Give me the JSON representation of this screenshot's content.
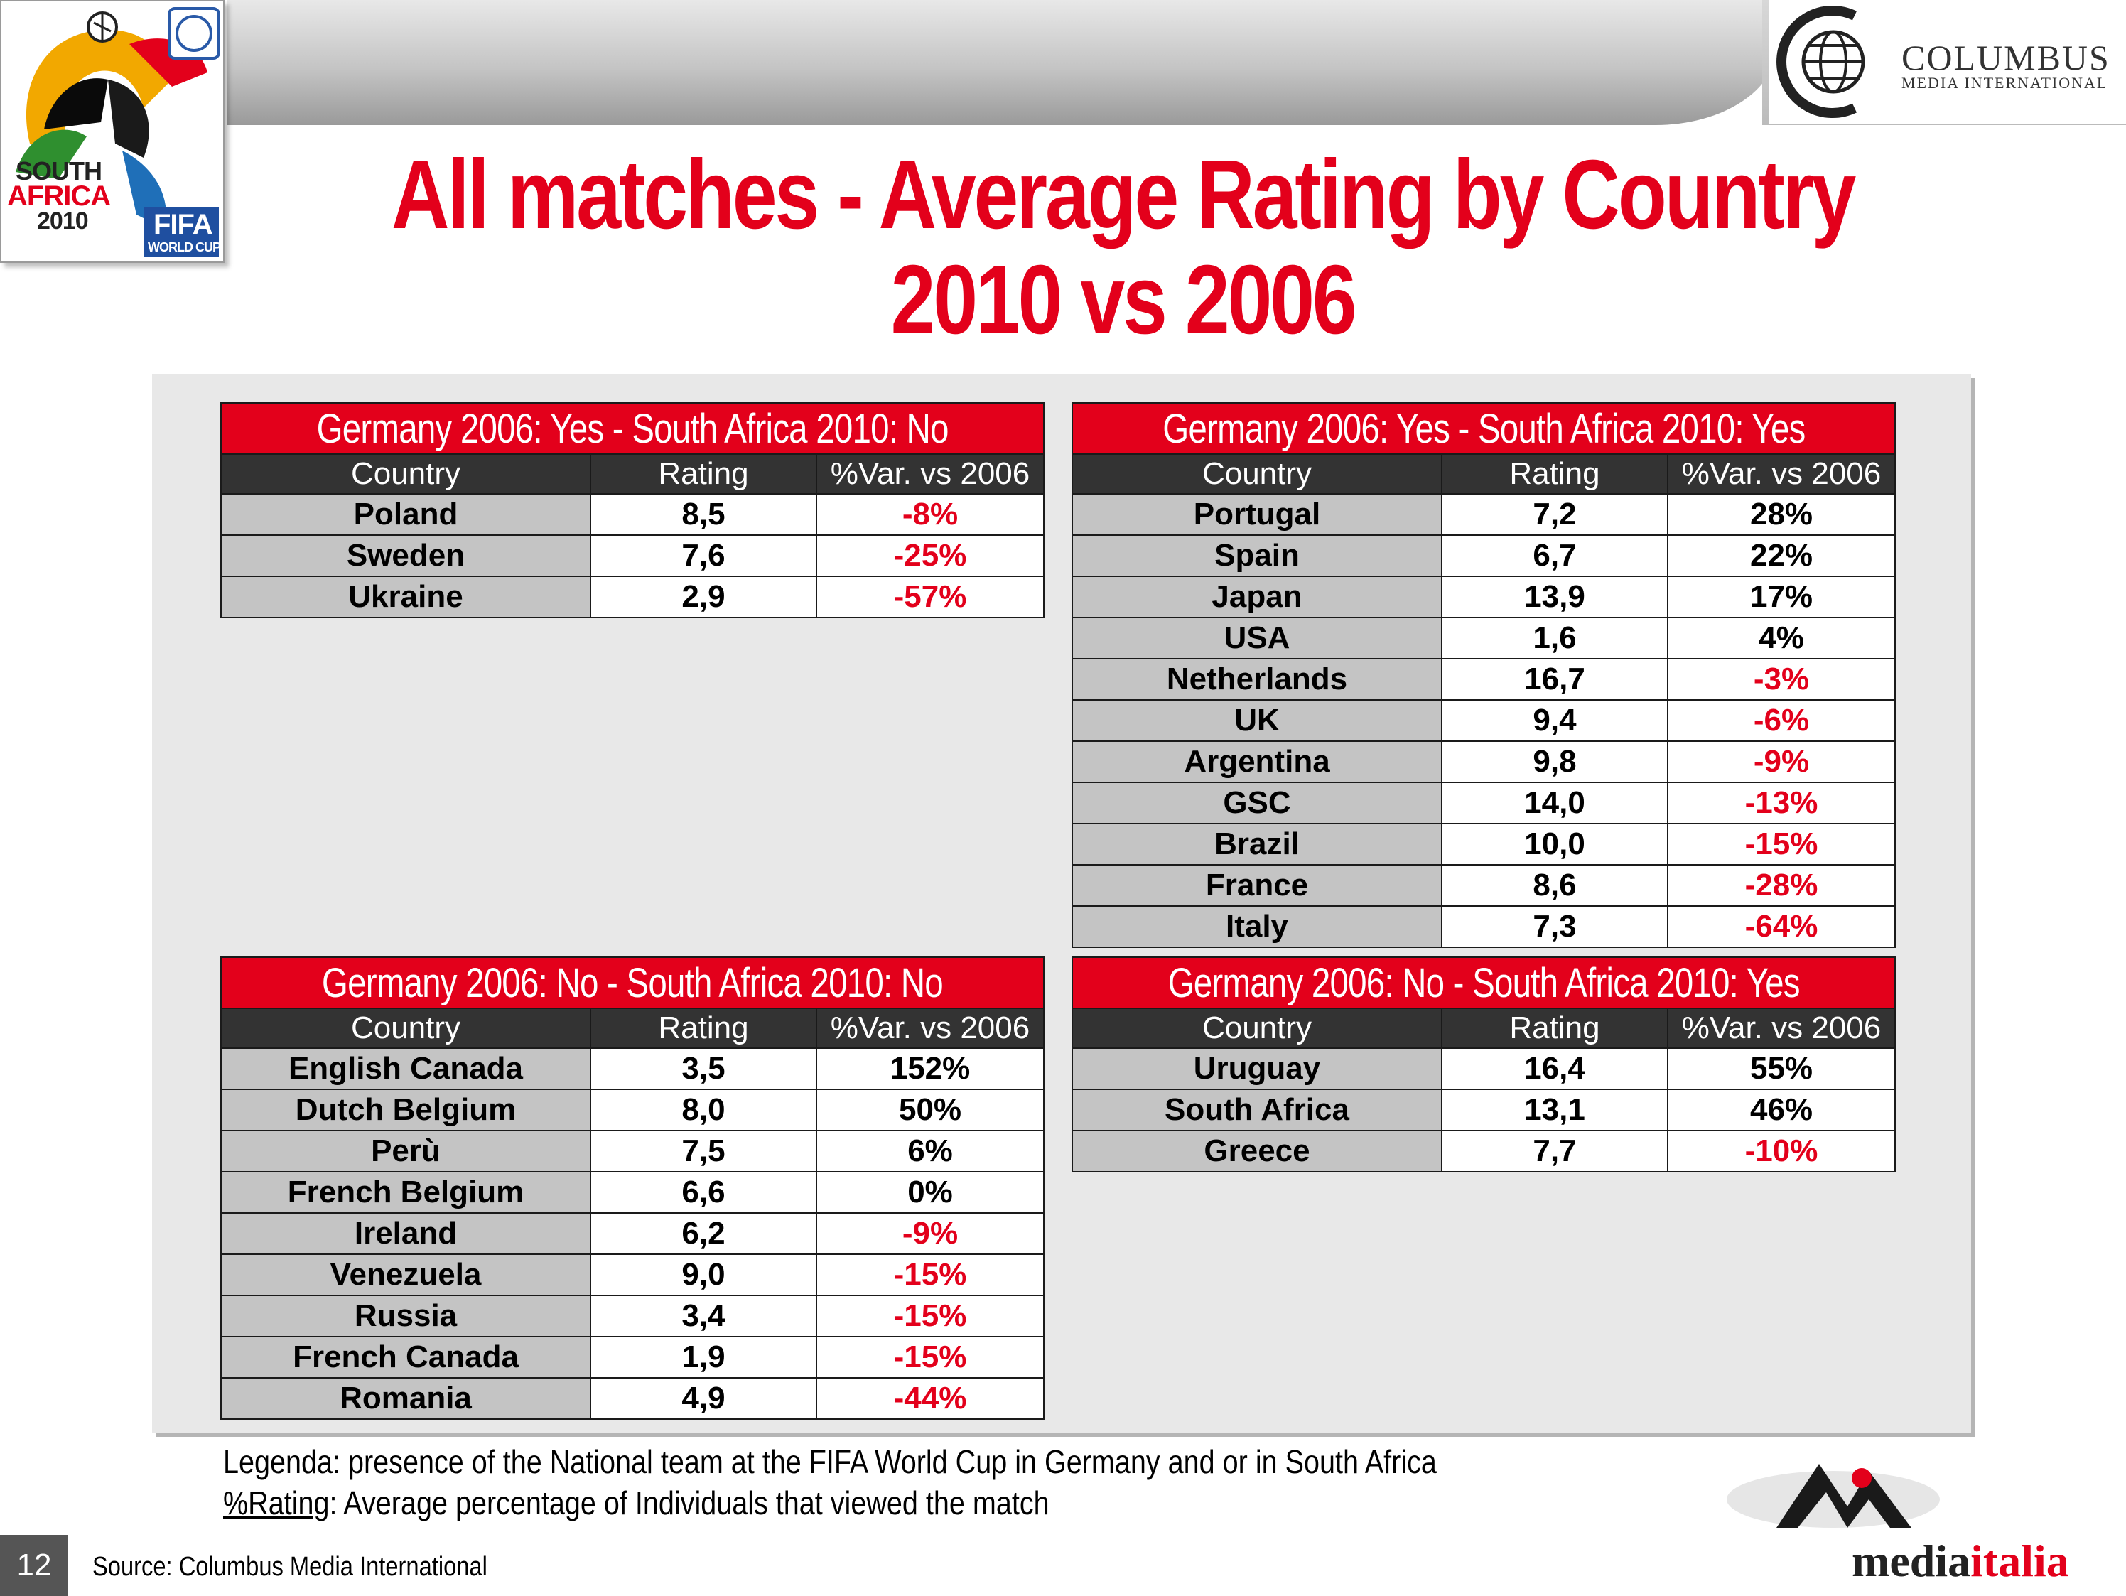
{
  "title": {
    "line1": "All matches - Average Rating by Country",
    "line2": "2010 vs 2006"
  },
  "logos": {
    "fifa": {
      "line1": "SOUTH",
      "line2": "AFRICA",
      "line3": "2010",
      "brand": "FIFA",
      "sub": "WORLD CUP"
    },
    "columbus": {
      "name": "COLUMBUS",
      "sub": "MEDIA INTERNATIONAL"
    },
    "mediaitalia": {
      "part1": "media",
      "part2": "italia"
    }
  },
  "columns": [
    "Country",
    "Rating",
    "%Var. vs 2006"
  ],
  "tables": [
    {
      "caption": "Germany 2006: Yes - South Africa 2010: No",
      "rows": [
        {
          "country": "Poland",
          "rating": "8,5",
          "var": "-8%",
          "neg": true
        },
        {
          "country": "Sweden",
          "rating": "7,6",
          "var": "-25%",
          "neg": true
        },
        {
          "country": "Ukraine",
          "rating": "2,9",
          "var": "-57%",
          "neg": true
        }
      ]
    },
    {
      "caption": "Germany 2006: Yes - South Africa 2010: Yes",
      "rows": [
        {
          "country": "Portugal",
          "rating": "7,2",
          "var": "28%",
          "neg": false
        },
        {
          "country": "Spain",
          "rating": "6,7",
          "var": "22%",
          "neg": false
        },
        {
          "country": "Japan",
          "rating": "13,9",
          "var": "17%",
          "neg": false
        },
        {
          "country": "USA",
          "rating": "1,6",
          "var": "4%",
          "neg": false
        },
        {
          "country": "Netherlands",
          "rating": "16,7",
          "var": "-3%",
          "neg": true
        },
        {
          "country": "UK",
          "rating": "9,4",
          "var": "-6%",
          "neg": true
        },
        {
          "country": "Argentina",
          "rating": "9,8",
          "var": "-9%",
          "neg": true
        },
        {
          "country": "GSC",
          "rating": "14,0",
          "var": "-13%",
          "neg": true
        },
        {
          "country": "Brazil",
          "rating": "10,0",
          "var": "-15%",
          "neg": true
        },
        {
          "country": "France",
          "rating": "8,6",
          "var": "-28%",
          "neg": true
        },
        {
          "country": "Italy",
          "rating": "7,3",
          "var": "-64%",
          "neg": true
        }
      ]
    },
    {
      "caption": "Germany 2006: No - South Africa 2010: No",
      "rows": [
        {
          "country": "English Canada",
          "rating": "3,5",
          "var": "152%",
          "neg": false
        },
        {
          "country": "Dutch Belgium",
          "rating": "8,0",
          "var": "50%",
          "neg": false
        },
        {
          "country": "Perù",
          "rating": "7,5",
          "var": "6%",
          "neg": false
        },
        {
          "country": "French Belgium",
          "rating": "6,6",
          "var": "0%",
          "neg": false
        },
        {
          "country": "Ireland",
          "rating": "6,2",
          "var": "-9%",
          "neg": true
        },
        {
          "country": "Venezuela",
          "rating": "9,0",
          "var": "-15%",
          "neg": true
        },
        {
          "country": "Russia",
          "rating": "3,4",
          "var": "-15%",
          "neg": true
        },
        {
          "country": "French Canada",
          "rating": "1,9",
          "var": "-15%",
          "neg": true
        },
        {
          "country": "Romania",
          "rating": "4,9",
          "var": "-44%",
          "neg": true
        }
      ]
    },
    {
      "caption": "Germany 2006: No - South Africa 2010: Yes",
      "rows": [
        {
          "country": "Uruguay",
          "rating": "16,4",
          "var": "55%",
          "neg": false
        },
        {
          "country": "South Africa",
          "rating": "13,1",
          "var": "46%",
          "neg": false
        },
        {
          "country": "Greece",
          "rating": "7,7",
          "var": "-10%",
          "neg": true
        }
      ]
    }
  ],
  "legend": {
    "line1": "Legenda: presence of the National team at the FIFA World Cup in Germany and or in South Africa",
    "line2_term": "%Rating",
    "line2_rest": ": Average percentage of Individuals that viewed the match"
  },
  "page_number": "12",
  "source": "Source: Columbus Media International",
  "colors": {
    "accent_red": "#e3001b",
    "header_dark": "#333333",
    "country_cell": "#c4c4c4",
    "panel": "#e8e8e8"
  }
}
